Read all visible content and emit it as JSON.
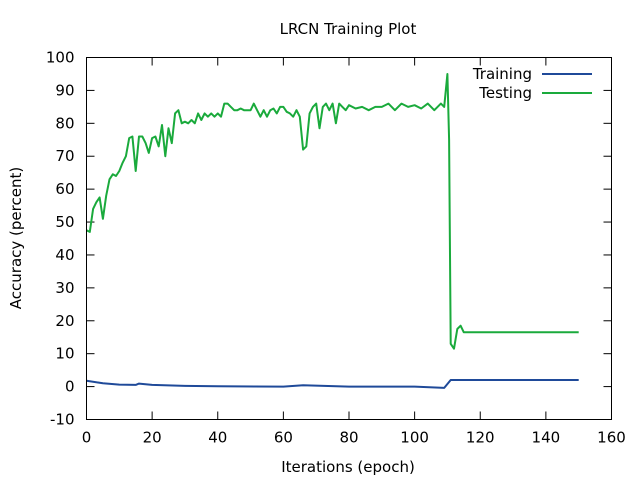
{
  "chart_data": {
    "type": "line",
    "title": "LRCN Training Plot",
    "xlabel": "Iterations (epoch)",
    "ylabel": "Accuracy (percent)",
    "xlim": [
      0,
      160
    ],
    "ylim": [
      -10,
      100
    ],
    "xticks": [
      0,
      20,
      40,
      60,
      80,
      100,
      120,
      140,
      160
    ],
    "yticks": [
      -10,
      0,
      10,
      20,
      30,
      40,
      50,
      60,
      70,
      80,
      90,
      100
    ],
    "grid": false,
    "legend_position": "top-right",
    "series": [
      {
        "name": "Training",
        "color": "#1f4a99",
        "x": [
          0,
          5,
          10,
          15,
          16,
          20,
          30,
          40,
          60,
          66,
          80,
          100,
          109,
          111,
          114,
          120,
          150
        ],
        "y": [
          1.8,
          1.0,
          0.6,
          0.5,
          0.9,
          0.5,
          0.2,
          0.1,
          0.0,
          0.4,
          0.0,
          0.0,
          -0.4,
          2.0,
          2.0,
          2.0,
          2.0
        ]
      },
      {
        "name": "Testing",
        "color": "#1aaa3c",
        "x": [
          0,
          1,
          2,
          3,
          4,
          5,
          6,
          7,
          8,
          9,
          10,
          11,
          12,
          13,
          14,
          15,
          16,
          17,
          18,
          19,
          20,
          21,
          22,
          23,
          24,
          25,
          26,
          27,
          28,
          29,
          30,
          31,
          32,
          33,
          34,
          35,
          36,
          37,
          38,
          39,
          40,
          41,
          42,
          43,
          44,
          45,
          46,
          47,
          48,
          49,
          50,
          51,
          52,
          53,
          54,
          55,
          56,
          57,
          58,
          59,
          60,
          61,
          62,
          63,
          64,
          65,
          66,
          67,
          68,
          69,
          70,
          71,
          72,
          73,
          74,
          75,
          76,
          77,
          78,
          79,
          80,
          82,
          84,
          86,
          88,
          90,
          92,
          94,
          96,
          98,
          100,
          102,
          104,
          106,
          108,
          109,
          110,
          110.5,
          111,
          112,
          113,
          114,
          115,
          120,
          130,
          150
        ],
        "y": [
          47.5,
          47,
          54,
          56,
          57.5,
          51,
          58,
          63,
          64.5,
          64,
          65.5,
          68,
          70,
          75.5,
          76,
          65.5,
          76,
          76,
          74,
          71,
          75.5,
          76,
          73,
          79.5,
          70,
          78.5,
          74,
          83,
          84,
          80,
          80.5,
          80,
          81,
          80,
          83,
          81,
          83,
          82,
          83,
          82,
          83,
          82,
          86,
          86,
          85,
          84,
          84,
          84.5,
          84,
          84,
          84,
          86,
          84,
          82,
          84,
          82,
          84,
          84.5,
          83,
          85,
          85,
          83.5,
          83,
          82,
          84,
          82,
          72,
          73,
          83,
          85,
          86,
          78.5,
          85,
          86,
          84,
          86,
          80,
          86,
          85,
          84,
          85.5,
          84.5,
          85,
          84,
          85,
          85,
          86,
          84,
          86,
          85,
          85.5,
          84.5,
          86,
          84,
          86,
          85,
          95,
          75,
          13,
          11.5,
          17.5,
          18.5,
          16.5,
          16.5,
          16.5,
          16.5
        ]
      }
    ]
  }
}
